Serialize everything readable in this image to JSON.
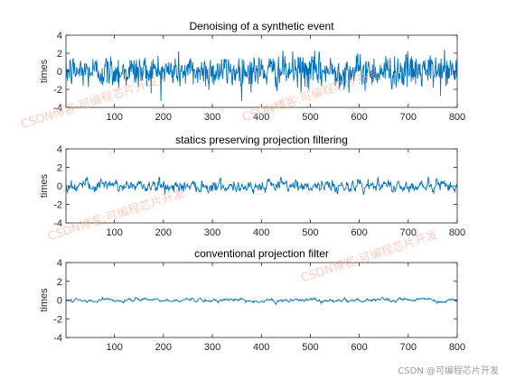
{
  "colors": {
    "line": "#0072BD",
    "axis": "#262626",
    "watermark": "#f2a58c"
  },
  "watermark_text": "CSDN博客:可编程芯片开发",
  "credit_text": "CSDN @可编程芯片开发",
  "chart_data": [
    {
      "type": "line",
      "title": "Denoising of a synthetic event",
      "xlabel": "",
      "ylabel": "times",
      "xlim": [
        1,
        800
      ],
      "ylim": [
        -4,
        4
      ],
      "xticks": [
        100,
        200,
        300,
        400,
        500,
        600,
        700,
        800
      ],
      "yticks": [
        -4,
        -2,
        0,
        2,
        4
      ],
      "series": [
        {
          "name": "",
          "n_points": 800,
          "approx_std": 0.95,
          "approx_range": [
            -3.3,
            3.0
          ]
        }
      ]
    },
    {
      "type": "line",
      "title": "statics preserving projection filtering",
      "xlabel": "",
      "ylabel": "times",
      "xlim": [
        1,
        800
      ],
      "ylim": [
        -4,
        4
      ],
      "xticks": [
        100,
        200,
        300,
        400,
        500,
        600,
        700,
        800
      ],
      "yticks": [
        -4,
        -2,
        0,
        2,
        4
      ],
      "series": [
        {
          "name": "",
          "n_points": 800,
          "approx_std": 0.35,
          "approx_range": [
            -1.2,
            1.3
          ]
        }
      ]
    },
    {
      "type": "line",
      "title": "conventional projection filter",
      "xlabel": "",
      "ylabel": "times",
      "xlim": [
        1,
        800
      ],
      "ylim": [
        -4,
        4
      ],
      "xticks": [
        100,
        200,
        300,
        400,
        500,
        600,
        700,
        800
      ],
      "yticks": [
        -4,
        -2,
        0,
        2,
        4
      ],
      "series": [
        {
          "name": "",
          "n_points": 800,
          "approx_std": 0.12,
          "approx_range": [
            -0.5,
            0.5
          ]
        }
      ]
    }
  ]
}
